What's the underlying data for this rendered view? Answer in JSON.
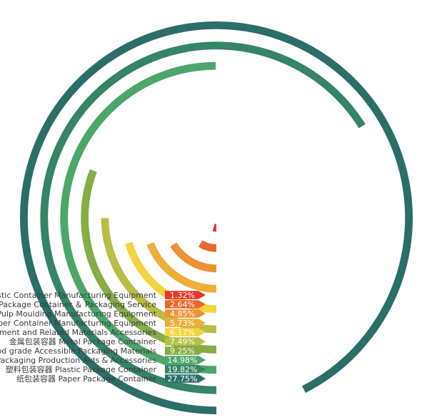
{
  "chart_data": {
    "type": "radial-bar",
    "unit": "%",
    "max_value": 30,
    "series": [
      {
        "label": "Plastic Container Manufacturing Equipment",
        "value": 1.32,
        "value_label": "1.32%",
        "color": "#E8362A"
      },
      {
        "label": "Package Container ＆ Packaging Service",
        "value": 2.64,
        "value_label": "2.64%",
        "color": "#E8672E"
      },
      {
        "label": "Pulp Moulding Manufacturing Equipment",
        "value": 4.85,
        "value_label": "4.85%",
        "color": "#EC9234"
      },
      {
        "label": "Paper Container Manufacturing Equipment",
        "value": 5.73,
        "value_label": "5.73%",
        "color": "#EEAE38"
      },
      {
        "label": "Packaging Equipment and Related Materials Accessories",
        "value": 6.17,
        "value_label": "6.17%",
        "color": "#F2D43E"
      },
      {
        "label": "金属包装容器 Metal Package Container",
        "value": 7.49,
        "value_label": "7.49%",
        "color": "#B7BE45"
      },
      {
        "label": "Food grade Accessible Packaging Materials",
        "value": 9.25,
        "value_label": "9.25%",
        "color": "#85AC45"
      },
      {
        "label": "Packaging Production Aids & Accessories",
        "value": 14.98,
        "value_label": "14.98%",
        "color": "#4CA66A"
      },
      {
        "label": "塑料包装容器 Plastic Package Container",
        "value": 19.82,
        "value_label": "19.82%",
        "color": "#348465"
      },
      {
        "label": "纸包装容器 Paper Package Container",
        "value": 27.75,
        "value_label": "27.75%",
        "color": "#2B6E68"
      }
    ]
  }
}
